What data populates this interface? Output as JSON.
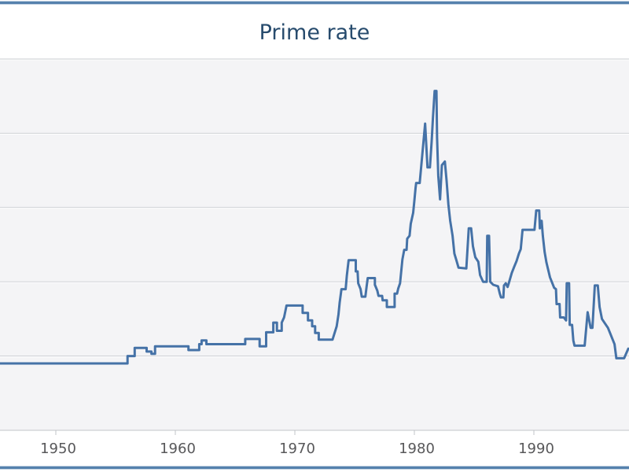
{
  "chart": {
    "title": "Prime rate"
  },
  "colors": {
    "line": "#4572a7",
    "title": "#274b6d",
    "label": "#58585a",
    "gridline": "#c9ccd1",
    "grid_emboss": "#ffffff",
    "axis": "#c2c4c8",
    "tick": "#c2c4c8",
    "plot_bg": "#f4f4f6",
    "frame_border": "#5581ad",
    "frame_border_light": "#c3d2e2"
  },
  "chart_data": {
    "type": "line",
    "title": "Prime rate",
    "xlabel": "",
    "ylabel": "",
    "legend": "none",
    "grid": true,
    "x_ticks": [
      1950,
      1960,
      1970,
      1980,
      1990
    ],
    "x_range": [
      1945.3,
      1998.0
    ],
    "y_range": [
      0,
      25
    ],
    "y_gridlines": [
      5,
      10,
      15,
      20,
      25
    ],
    "series": [
      {
        "name": "Prime rate",
        "points": [
          [
            1945.3,
            4.5
          ],
          [
            1956.0,
            4.5
          ],
          [
            1956.0,
            5.0
          ],
          [
            1956.6,
            5.0
          ],
          [
            1956.6,
            5.55
          ],
          [
            1957.6,
            5.55
          ],
          [
            1957.6,
            5.3
          ],
          [
            1958.0,
            5.3
          ],
          [
            1958.0,
            5.15
          ],
          [
            1958.3,
            5.15
          ],
          [
            1958.3,
            5.65
          ],
          [
            1961.1,
            5.65
          ],
          [
            1961.1,
            5.4
          ],
          [
            1962.0,
            5.4
          ],
          [
            1962.0,
            5.8
          ],
          [
            1962.2,
            5.8
          ],
          [
            1962.2,
            6.05
          ],
          [
            1962.6,
            6.05
          ],
          [
            1962.6,
            5.8
          ],
          [
            1965.85,
            5.8
          ],
          [
            1965.85,
            6.15
          ],
          [
            1967.05,
            6.15
          ],
          [
            1967.05,
            5.65
          ],
          [
            1967.6,
            5.65
          ],
          [
            1967.6,
            6.6
          ],
          [
            1968.2,
            6.6
          ],
          [
            1968.2,
            7.25
          ],
          [
            1968.5,
            7.25
          ],
          [
            1968.5,
            6.7
          ],
          [
            1968.9,
            6.7
          ],
          [
            1968.9,
            7.25
          ],
          [
            1969.1,
            7.6
          ],
          [
            1969.3,
            8.4
          ],
          [
            1970.65,
            8.4
          ],
          [
            1970.65,
            7.9
          ],
          [
            1971.1,
            7.9
          ],
          [
            1971.1,
            7.4
          ],
          [
            1971.45,
            7.4
          ],
          [
            1971.45,
            7.0
          ],
          [
            1971.7,
            7.0
          ],
          [
            1971.7,
            6.55
          ],
          [
            1972.0,
            6.55
          ],
          [
            1972.0,
            6.1
          ],
          [
            1973.15,
            6.1
          ],
          [
            1973.5,
            7.0
          ],
          [
            1973.65,
            7.8
          ],
          [
            1973.75,
            8.6
          ],
          [
            1973.9,
            9.5
          ],
          [
            1974.25,
            9.5
          ],
          [
            1974.35,
            10.4
          ],
          [
            1974.5,
            11.45
          ],
          [
            1975.1,
            11.45
          ],
          [
            1975.1,
            10.7
          ],
          [
            1975.25,
            10.7
          ],
          [
            1975.3,
            9.9
          ],
          [
            1975.5,
            9.5
          ],
          [
            1975.6,
            9.0
          ],
          [
            1975.9,
            9.0
          ],
          [
            1976.0,
            9.65
          ],
          [
            1976.1,
            10.25
          ],
          [
            1976.7,
            10.25
          ],
          [
            1976.7,
            9.8
          ],
          [
            1976.9,
            9.4
          ],
          [
            1977.0,
            9.05
          ],
          [
            1977.3,
            9.05
          ],
          [
            1977.35,
            8.75
          ],
          [
            1977.7,
            8.75
          ],
          [
            1977.7,
            8.3
          ],
          [
            1978.35,
            8.3
          ],
          [
            1978.35,
            9.2
          ],
          [
            1978.55,
            9.2
          ],
          [
            1978.65,
            9.55
          ],
          [
            1978.8,
            9.9
          ],
          [
            1978.9,
            10.7
          ],
          [
            1979.0,
            11.5
          ],
          [
            1979.15,
            12.15
          ],
          [
            1979.35,
            12.15
          ],
          [
            1979.4,
            12.9
          ],
          [
            1979.6,
            13.1
          ],
          [
            1979.7,
            13.9
          ],
          [
            1979.9,
            14.65
          ],
          [
            1980.0,
            15.45
          ],
          [
            1980.1,
            16.3
          ],
          [
            1980.15,
            16.65
          ],
          [
            1980.45,
            16.65
          ],
          [
            1980.9,
            20.65
          ],
          [
            1981.1,
            17.7
          ],
          [
            1981.3,
            17.7
          ],
          [
            1981.45,
            19.45
          ],
          [
            1981.55,
            21.0
          ],
          [
            1981.7,
            22.85
          ],
          [
            1981.85,
            22.85
          ],
          [
            1981.9,
            19.7
          ],
          [
            1982.0,
            17.15
          ],
          [
            1982.15,
            15.55
          ],
          [
            1982.3,
            17.85
          ],
          [
            1982.55,
            18.1
          ],
          [
            1982.7,
            16.8
          ],
          [
            1982.85,
            15.2
          ],
          [
            1983.0,
            14.1
          ],
          [
            1983.2,
            13.1
          ],
          [
            1983.35,
            11.9
          ],
          [
            1983.5,
            11.5
          ],
          [
            1983.7,
            10.95
          ],
          [
            1984.35,
            10.9
          ],
          [
            1984.55,
            13.6
          ],
          [
            1984.75,
            13.6
          ],
          [
            1984.9,
            12.4
          ],
          [
            1985.1,
            11.65
          ],
          [
            1985.35,
            11.35
          ],
          [
            1985.5,
            10.45
          ],
          [
            1985.75,
            10.0
          ],
          [
            1986.05,
            10.0
          ],
          [
            1986.1,
            13.1
          ],
          [
            1986.25,
            13.1
          ],
          [
            1986.35,
            10.0
          ],
          [
            1986.6,
            9.8
          ],
          [
            1987.0,
            9.7
          ],
          [
            1987.15,
            9.2
          ],
          [
            1987.25,
            8.95
          ],
          [
            1987.45,
            8.95
          ],
          [
            1987.5,
            9.75
          ],
          [
            1987.65,
            9.9
          ],
          [
            1987.8,
            9.65
          ],
          [
            1987.9,
            9.9
          ],
          [
            1988.15,
            10.6
          ],
          [
            1988.35,
            11.0
          ],
          [
            1988.55,
            11.4
          ],
          [
            1988.75,
            11.9
          ],
          [
            1988.9,
            12.2
          ],
          [
            1989.05,
            13.5
          ],
          [
            1990.05,
            13.5
          ],
          [
            1990.2,
            14.8
          ],
          [
            1990.45,
            14.8
          ],
          [
            1990.5,
            13.6
          ],
          [
            1990.55,
            14.1
          ],
          [
            1990.65,
            14.1
          ],
          [
            1990.75,
            13.1
          ],
          [
            1990.9,
            12.0
          ],
          [
            1991.05,
            11.3
          ],
          [
            1991.35,
            10.3
          ],
          [
            1991.7,
            9.6
          ],
          [
            1991.85,
            9.5
          ],
          [
            1991.9,
            8.5
          ],
          [
            1992.15,
            8.5
          ],
          [
            1992.2,
            7.6
          ],
          [
            1992.5,
            7.6
          ],
          [
            1992.7,
            7.4
          ],
          [
            1992.75,
            9.9
          ],
          [
            1992.95,
            9.9
          ],
          [
            1993.0,
            7.1
          ],
          [
            1993.2,
            7.1
          ],
          [
            1993.3,
            6.05
          ],
          [
            1993.4,
            5.7
          ],
          [
            1994.25,
            5.7
          ],
          [
            1994.5,
            7.95
          ],
          [
            1994.75,
            6.9
          ],
          [
            1994.9,
            6.9
          ],
          [
            1995.1,
            9.75
          ],
          [
            1995.35,
            9.75
          ],
          [
            1995.5,
            8.3
          ],
          [
            1995.7,
            7.5
          ],
          [
            1995.9,
            7.25
          ],
          [
            1996.2,
            6.9
          ],
          [
            1996.4,
            6.5
          ],
          [
            1996.6,
            6.1
          ],
          [
            1996.75,
            5.8
          ],
          [
            1996.9,
            4.85
          ],
          [
            1997.55,
            4.85
          ],
          [
            1997.9,
            5.5
          ]
        ]
      }
    ]
  }
}
